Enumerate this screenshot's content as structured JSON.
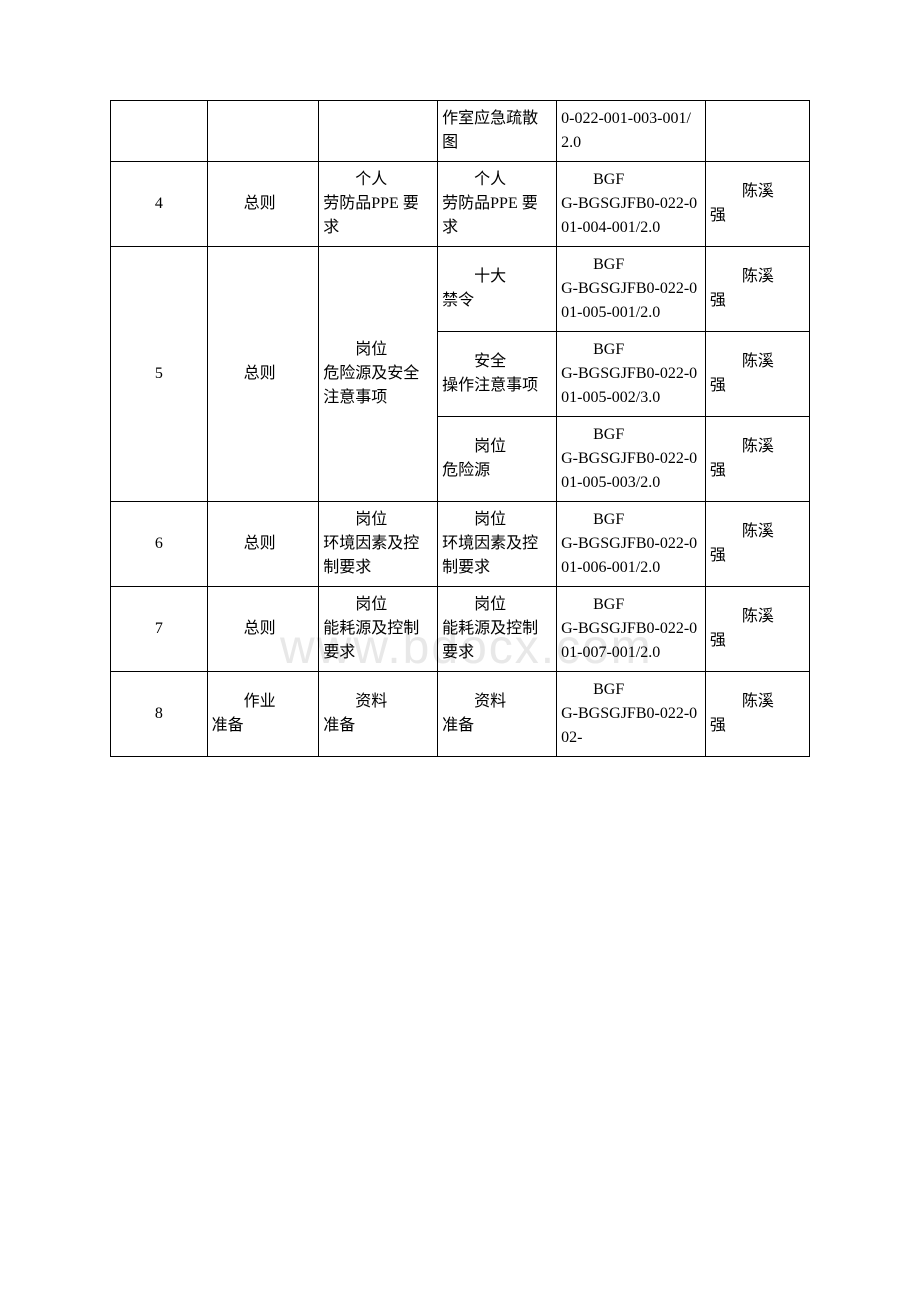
{
  "watermark": "www.bdocx.com",
  "rows": [
    {
      "num": "",
      "cat": "",
      "topic": "",
      "item": "作室应急疏散图",
      "code": "0-022-001-003-001/2.0",
      "person": ""
    },
    {
      "num": "4",
      "cat": "总则",
      "topic_indent": "个人",
      "topic_rest": "劳防品PPE 要求",
      "item_indent": "个人",
      "item_rest": "劳防品PPE 要求",
      "code_indent": "BGF",
      "code_rest": "G-BGSGJFB0-022-001-004-001/2.0",
      "person_indent": "陈溪",
      "person_rest": "强"
    },
    {
      "num": "5",
      "cat": "总则",
      "topic_indent": "岗位",
      "topic_rest": "危险源及安全注意事项",
      "sub": [
        {
          "item_indent": "十大",
          "item_rest": "禁令",
          "code_indent": "BGF",
          "code_rest": "G-BGSGJFB0-022-001-005-001/2.0",
          "person_indent": "陈溪",
          "person_rest": "强"
        },
        {
          "item_indent": "安全",
          "item_rest": "操作注意事项",
          "code_indent": "BGF",
          "code_rest": "G-BGSGJFB0-022-001-005-002/3.0",
          "person_indent": "陈溪",
          "person_rest": "强"
        },
        {
          "item_indent": "岗位",
          "item_rest": "危险源",
          "code_indent": "BGF",
          "code_rest": "G-BGSGJFB0-022-001-005-003/2.0",
          "person_indent": "陈溪",
          "person_rest": "强"
        }
      ]
    },
    {
      "num": "6",
      "cat": "总则",
      "topic_indent": "岗位",
      "topic_rest": "环境因素及控制要求",
      "item_indent": "岗位",
      "item_rest": "环境因素及控制要求",
      "code_indent": "BGF",
      "code_rest": "G-BGSGJFB0-022-001-006-001/2.0",
      "person_indent": "陈溪",
      "person_rest": "强"
    },
    {
      "num": "7",
      "cat": "总则",
      "topic_indent": "岗位",
      "topic_rest": "能耗源及控制要求",
      "item_indent": "岗位",
      "item_rest": "能耗源及控制要求",
      "code_indent": "BGF",
      "code_rest": "G-BGSGJFB0-022-001-007-001/2.0",
      "person_indent": "陈溪",
      "person_rest": "强"
    },
    {
      "num": "8",
      "cat_indent": "作业",
      "cat_rest": "准备",
      "topic_indent": "资料",
      "topic_rest": "准备",
      "item_indent": "资料",
      "item_rest": "准备",
      "code_indent": "BGF",
      "code_rest": "G-BGSGJFB0-022-002-",
      "person_indent": "陈溪",
      "person_rest": "强"
    }
  ]
}
